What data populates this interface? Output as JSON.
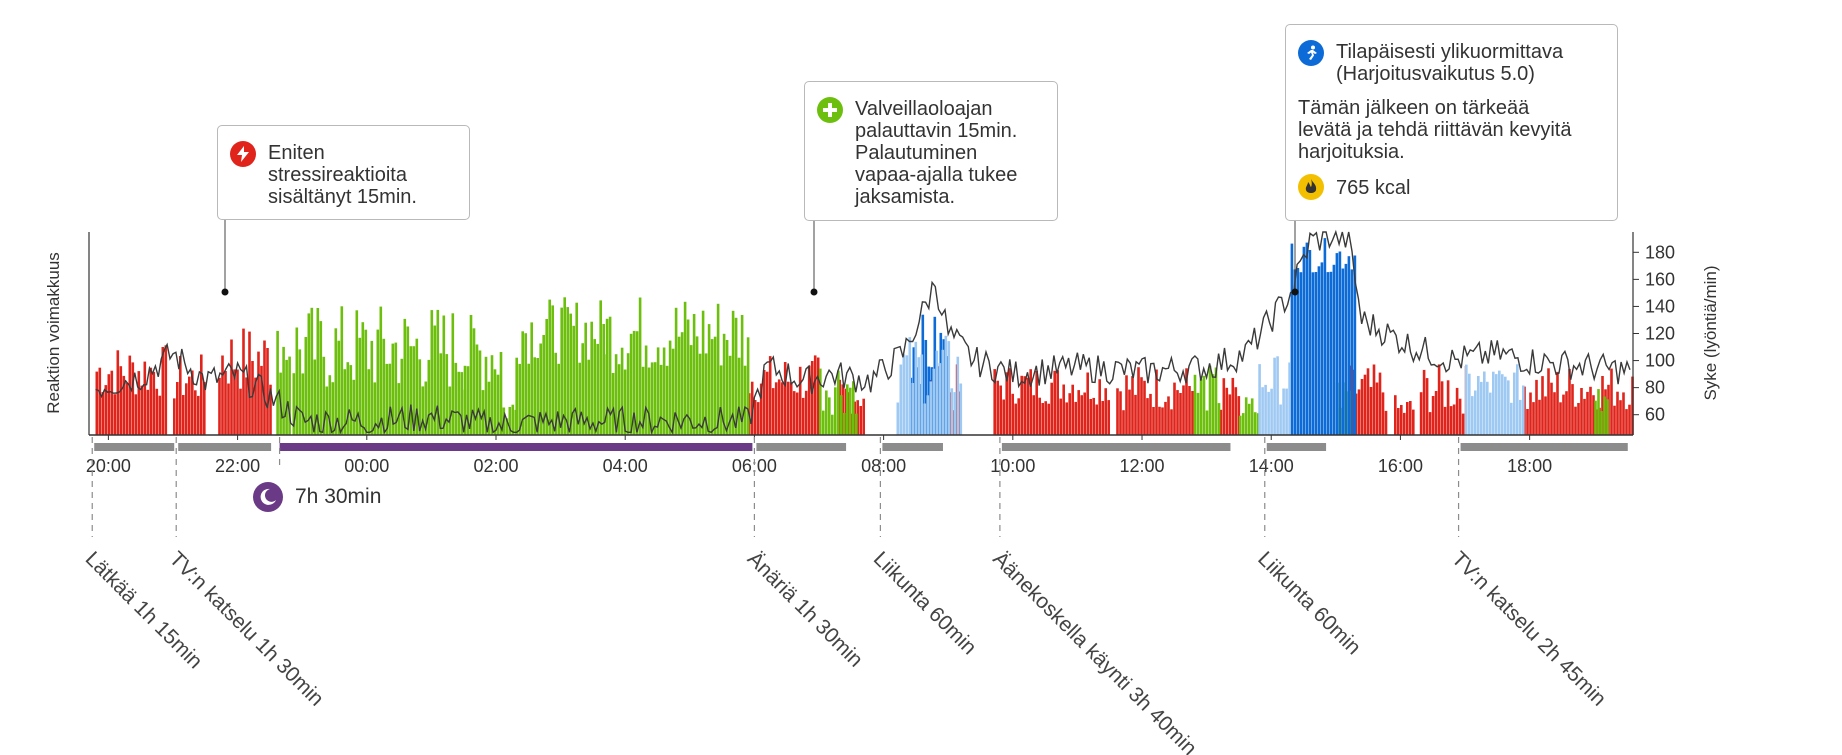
{
  "colors": {
    "stress": "#e0241c",
    "recovery": "#6cbf0d",
    "exercise_high": "#0c6bd6",
    "exercise_light": "#9ec9f2",
    "hr_line": "#3a3a3a",
    "sleep_bar": "#6b3a87",
    "activity_bar": "#8c8c8c"
  },
  "callouts": {
    "stress": {
      "icon": "lightning-icon",
      "text": "Eniten\nstressireaktioita\nsisältänyt 15min."
    },
    "recovery": {
      "icon": "plus-icon",
      "text": "Valveillaoloajan\npalauttavin 15min.\nPalautuminen\nvapaa-ajalla tukee\njaksamista."
    },
    "exercise": {
      "icon": "running-icon",
      "title": "Tilapäisesti ylikuormittava\n(Harjoitusvaikutus 5.0)",
      "body": "Tämän jälkeen on tärkeää\nlevätä ja tehdä riittävän kevyitä\nharjoituksia.",
      "kcal_icon": "flame-icon",
      "kcal": "765 kcal"
    }
  },
  "sleep": {
    "icon": "moon-icon",
    "label": "7h 30min"
  },
  "chart_data": {
    "type": "bar",
    "x_unit": "hours",
    "x_range": [
      19.7,
      43.6
    ],
    "xticks": [
      {
        "value": 20,
        "label": "20:00"
      },
      {
        "value": 22,
        "label": "22:00"
      },
      {
        "value": 24,
        "label": "00:00"
      },
      {
        "value": 26,
        "label": "02:00"
      },
      {
        "value": 28,
        "label": "04:00"
      },
      {
        "value": 30,
        "label": "06:00"
      },
      {
        "value": 32,
        "label": "08:00"
      },
      {
        "value": 34,
        "label": "10:00"
      },
      {
        "value": 36,
        "label": "12:00"
      },
      {
        "value": 38,
        "label": "14:00"
      },
      {
        "value": 40,
        "label": "16:00"
      },
      {
        "value": 42,
        "label": "18:00"
      }
    ],
    "ylabel_left": "Reaktion voimakkuus",
    "ylabel_right": "Syke (lyöntiä/min)",
    "y_right_range": [
      45,
      195
    ],
    "y_right_ticks": [
      60,
      80,
      100,
      120,
      140,
      160,
      180
    ],
    "series": [
      {
        "name": "stress",
        "segments": [
          [
            19.8,
            20.9,
            0.18,
            0.45
          ],
          [
            21.0,
            21.5,
            0.15,
            0.4
          ],
          [
            21.7,
            22.5,
            0.2,
            0.55
          ],
          [
            29.9,
            31.0,
            0.15,
            0.4
          ],
          [
            31.3,
            31.7,
            0.1,
            0.3
          ],
          [
            32.7,
            33.2,
            0.1,
            0.35
          ],
          [
            33.7,
            35.5,
            0.15,
            0.35
          ],
          [
            35.6,
            36.8,
            0.12,
            0.35
          ],
          [
            37.2,
            37.5,
            0.1,
            0.3
          ],
          [
            39.2,
            39.8,
            0.1,
            0.35
          ],
          [
            39.9,
            40.2,
            0.05,
            0.2
          ],
          [
            40.3,
            41.0,
            0.1,
            0.35
          ],
          [
            41.9,
            43.6,
            0.12,
            0.35
          ]
        ]
      },
      {
        "name": "recovery",
        "segments": [
          [
            22.6,
            22.8,
            0.3,
            0.55
          ],
          [
            22.85,
            25.5,
            0.2,
            0.65
          ],
          [
            25.5,
            26.1,
            0.2,
            0.6
          ],
          [
            26.1,
            26.3,
            0.05,
            0.2
          ],
          [
            26.3,
            27.7,
            0.35,
            0.68
          ],
          [
            27.7,
            29.9,
            0.3,
            0.7
          ],
          [
            31.0,
            31.6,
            0.1,
            0.4
          ],
          [
            36.8,
            37.2,
            0.1,
            0.35
          ],
          [
            37.5,
            37.8,
            0.05,
            0.2
          ],
          [
            39.0,
            39.2,
            0.1,
            0.3
          ],
          [
            43.0,
            43.2,
            0.1,
            0.3
          ]
        ]
      },
      {
        "name": "exercise_high",
        "segments": [
          [
            32.4,
            33.0,
            0.25,
            0.6
          ],
          [
            38.3,
            39.3,
            0.8,
            0.97
          ]
        ]
      },
      {
        "name": "exercise_light",
        "segments": [
          [
            32.2,
            33.2,
            0.15,
            0.5
          ],
          [
            37.8,
            38.3,
            0.15,
            0.4
          ],
          [
            41.0,
            41.9,
            0.15,
            0.35
          ]
        ]
      },
      {
        "name": "heart_rate",
        "points": [
          [
            19.8,
            80
          ],
          [
            20.5,
            88
          ],
          [
            21.0,
            105
          ],
          [
            21.5,
            85
          ],
          [
            22.0,
            90
          ],
          [
            22.6,
            70
          ],
          [
            23.0,
            55
          ],
          [
            24.0,
            55
          ],
          [
            25.0,
            58
          ],
          [
            26.0,
            52
          ],
          [
            27.0,
            55
          ],
          [
            28.0,
            55
          ],
          [
            29.0,
            56
          ],
          [
            29.9,
            55
          ],
          [
            30.2,
            95
          ],
          [
            30.8,
            85
          ],
          [
            31.2,
            90
          ],
          [
            31.8,
            85
          ],
          [
            32.3,
            105
          ],
          [
            32.6,
            135
          ],
          [
            32.8,
            158
          ],
          [
            33.0,
            120
          ],
          [
            33.4,
            100
          ],
          [
            34.0,
            90
          ],
          [
            35.0,
            95
          ],
          [
            36.0,
            92
          ],
          [
            37.0,
            95
          ],
          [
            37.6,
            105
          ],
          [
            38.3,
            150
          ],
          [
            38.6,
            188
          ],
          [
            38.9,
            192
          ],
          [
            39.2,
            190
          ],
          [
            39.4,
            130
          ],
          [
            39.8,
            120
          ],
          [
            40.2,
            110
          ],
          [
            40.8,
            100
          ],
          [
            41.5,
            105
          ],
          [
            42.0,
            100
          ],
          [
            43.0,
            95
          ],
          [
            43.6,
            92
          ]
        ]
      }
    ],
    "activities": [
      {
        "label": "Lätkää 1h 15min",
        "start": 19.75,
        "end": 21.05
      },
      {
        "label": "TV:n katselu 1h 30min",
        "start": 21.05,
        "end": 22.55
      },
      {
        "label": "Änäriä 1h 30min",
        "start": 30.0,
        "end": 31.45
      },
      {
        "label": "Liikunta 60min",
        "start": 31.95,
        "end": 32.95
      },
      {
        "label": "Äänekoskella käynti 3h 40min",
        "start": 33.8,
        "end": 37.4
      },
      {
        "label": "Liikunta 60min",
        "start": 37.9,
        "end": 38.88
      },
      {
        "label": "TV:n katselu 2h 45min",
        "start": 40.9,
        "end": 43.55
      }
    ],
    "sleep_period": {
      "start": 22.65,
      "end": 30.0
    }
  }
}
